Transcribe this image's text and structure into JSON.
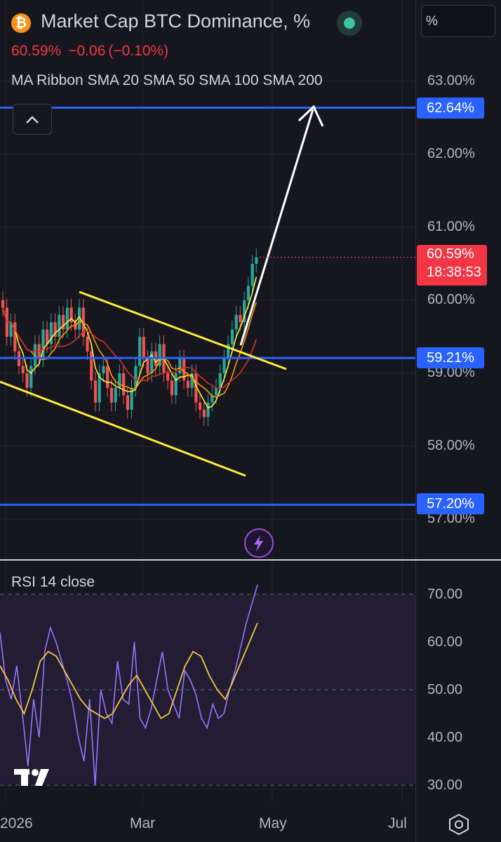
{
  "header": {
    "title": "Market Cap BTC Dominance, %",
    "logo_symbol": "₿",
    "last_value": "60.59%",
    "change_abs": "−0.06",
    "change_pct": "(−0.10%)",
    "indicator_legend": "MA Ribbon SMA 20 SMA 50 SMA 100 SMA 200",
    "unit_label": "%",
    "status_color": "#3cc4a4"
  },
  "price_axis": {
    "ticks": [
      "63.00%",
      "62.00%",
      "61.00%",
      "60.00%",
      "59.00%",
      "58.00%",
      "57.00%"
    ],
    "tags": {
      "upper_level": "62.64%",
      "last_price": "60.59%",
      "countdown": "18:38:53",
      "mid_level": "59.21%",
      "lower_level": "57.20%"
    }
  },
  "rsi": {
    "label": "RSI 14 close",
    "ticks": [
      "70.00",
      "60.00",
      "50.00",
      "40.00",
      "30.00"
    ]
  },
  "time_axis": {
    "ticks": [
      "2026",
      "Mar",
      "May",
      "Jul"
    ]
  },
  "icons": {
    "collapse": "chevron-up-icon",
    "lightning": "lightning-icon",
    "settings": "settings-hexagon-icon",
    "logo": "tradingview-logo"
  },
  "colors": {
    "background": "#16171e",
    "up": "#26a69a",
    "down": "#ef5350",
    "level_line": "#2962ff",
    "channel": "#ffeb3b",
    "arrow": "#ffffff",
    "rsi_line": "#9575ff",
    "rsi_ma": "#f5c542",
    "sma_orange": "#ff9800",
    "sma_red": "#d32f2f"
  },
  "chart_data": [
    {
      "type": "candlestick",
      "title": "Market Cap BTC Dominance, %",
      "x_ticks": [
        "2026",
        "Mar",
        "May",
        "Jul"
      ],
      "y_range": [
        56.7,
        63.3
      ],
      "y_ticks": [
        63.0,
        62.0,
        61.0,
        60.0,
        59.0,
        58.0,
        57.0
      ],
      "grid": true,
      "series": [
        {
          "name": "Market Cap BTC Dominance",
          "values": [
            59.9,
            59.5,
            59.7,
            59.3,
            59.1,
            59.0,
            58.8,
            59.1,
            59.4,
            59.2,
            59.6,
            59.4,
            59.7,
            59.5,
            59.8,
            59.6,
            59.9,
            59.7,
            59.6,
            59.9,
            59.5,
            59.3,
            58.9,
            58.6,
            59.0,
            59.1,
            58.8,
            58.6,
            58.8,
            59.0,
            58.7,
            58.5,
            58.8,
            59.1,
            59.5,
            59.2,
            59.0,
            59.3,
            59.1,
            59.4,
            59.0,
            58.9,
            58.7,
            59.0,
            59.2,
            58.9,
            58.8,
            59.0,
            58.6,
            58.5,
            58.4,
            58.6,
            58.7,
            58.8,
            59.0,
            59.2,
            59.4,
            59.6,
            59.8,
            59.7,
            60.0,
            60.2,
            60.5,
            60.59
          ]
        }
      ],
      "annotations": {
        "horizontal_levels": [
          62.64,
          59.21,
          57.2
        ],
        "last_price": 60.59,
        "countdown": "18:38:53",
        "indicators": "MA Ribbon SMA 20 SMA 50 SMA 100 SMA 200",
        "drawings": [
          "descending channel",
          "up arrow to 62.64%"
        ]
      }
    },
    {
      "type": "line",
      "title": "RSI 14 close",
      "y_range": [
        28,
        72
      ],
      "y_ticks": [
        70.0,
        60.0,
        50.0,
        40.0,
        30.0
      ],
      "series": [
        {
          "name": "RSI 14 close",
          "values": [
            62,
            52,
            48,
            55,
            45,
            34,
            48,
            40,
            58,
            63,
            60,
            56,
            52,
            47,
            40,
            35,
            48,
            30,
            50,
            45,
            43,
            56,
            48,
            47,
            60,
            44,
            42,
            46,
            52,
            58,
            50,
            47,
            44,
            54,
            52,
            49,
            44,
            42,
            47,
            44,
            45,
            50,
            54,
            59,
            64,
            68,
            72
          ]
        },
        {
          "name": "RSI MA",
          "values": [
            55,
            52,
            48,
            45,
            50,
            56,
            58,
            57,
            54,
            51,
            48,
            46,
            45,
            44,
            45,
            48,
            51,
            53,
            50,
            47,
            44,
            45,
            50,
            55,
            58,
            57,
            53,
            50,
            48,
            52,
            56,
            60,
            64
          ]
        }
      ]
    }
  ]
}
